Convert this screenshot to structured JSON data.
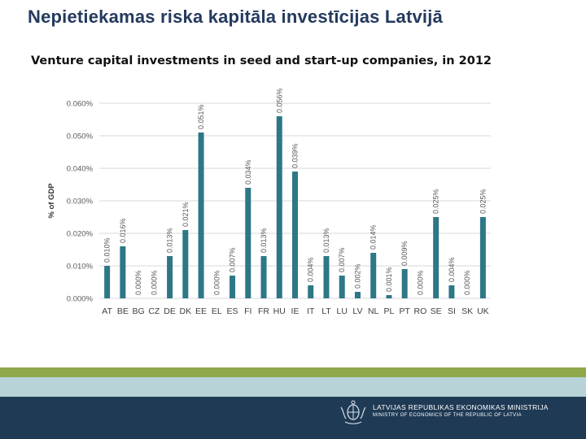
{
  "slide": {
    "title": "Nepietiekamas riska kapitāla investīcijas Latvijā"
  },
  "footer": {
    "ministry_lv": "LATVIJAS REPUBLIKAS EKONOMIKAS MINISTRIJA",
    "ministry_en": "MINISTRY OF ECONOMICS OF THE REPUBLIC OF LATVIA",
    "logo_icon": "coat-of-arms-icon"
  },
  "colors": {
    "bar": "#2e7787",
    "title": "#243a5e",
    "band_green": "#8fa84a",
    "band_lightblue": "#b8d3d8",
    "band_navy": "#1f3a55"
  },
  "chart_data": {
    "type": "bar",
    "title": "Venture capital investments in seed and start-up companies, in 2012",
    "xlabel": "",
    "ylabel": "% of GDP",
    "ylim": [
      0,
      0.06
    ],
    "yticks": [
      "0.000%",
      "0.010%",
      "0.020%",
      "0.030%",
      "0.040%",
      "0.050%",
      "0.060%"
    ],
    "grid": true,
    "categories": [
      "AT",
      "BE",
      "BG",
      "CZ",
      "DE",
      "DK",
      "EE",
      "EL",
      "ES",
      "FI",
      "FR",
      "HU",
      "IE",
      "IT",
      "LT",
      "LU",
      "LV",
      "NL",
      "PL",
      "PT",
      "RO",
      "SE",
      "SI",
      "SK",
      "UK"
    ],
    "values": [
      0.01,
      0.016,
      0.0,
      0.0,
      0.013,
      0.021,
      0.051,
      0.0,
      0.007,
      0.034,
      0.013,
      0.056,
      0.039,
      0.004,
      0.013,
      0.007,
      0.002,
      0.014,
      0.001,
      0.009,
      0.0,
      0.025,
      0.004,
      0.0,
      0.025
    ],
    "data_labels": [
      "0.010%",
      "0.016%",
      "0.000%",
      "0.000%",
      "0.013%",
      "0.021%",
      "0.051%",
      "0.000%",
      "0.007%",
      "0.034%",
      "0.013%",
      "0.056%",
      "0.039%",
      "0.004%",
      "0.013%",
      "0.007%",
      "0.002%",
      "0.014%",
      "0.001%",
      "0.009%",
      "0.000%",
      "0.025%",
      "0.004%",
      "0.000%",
      "0.025%"
    ]
  }
}
